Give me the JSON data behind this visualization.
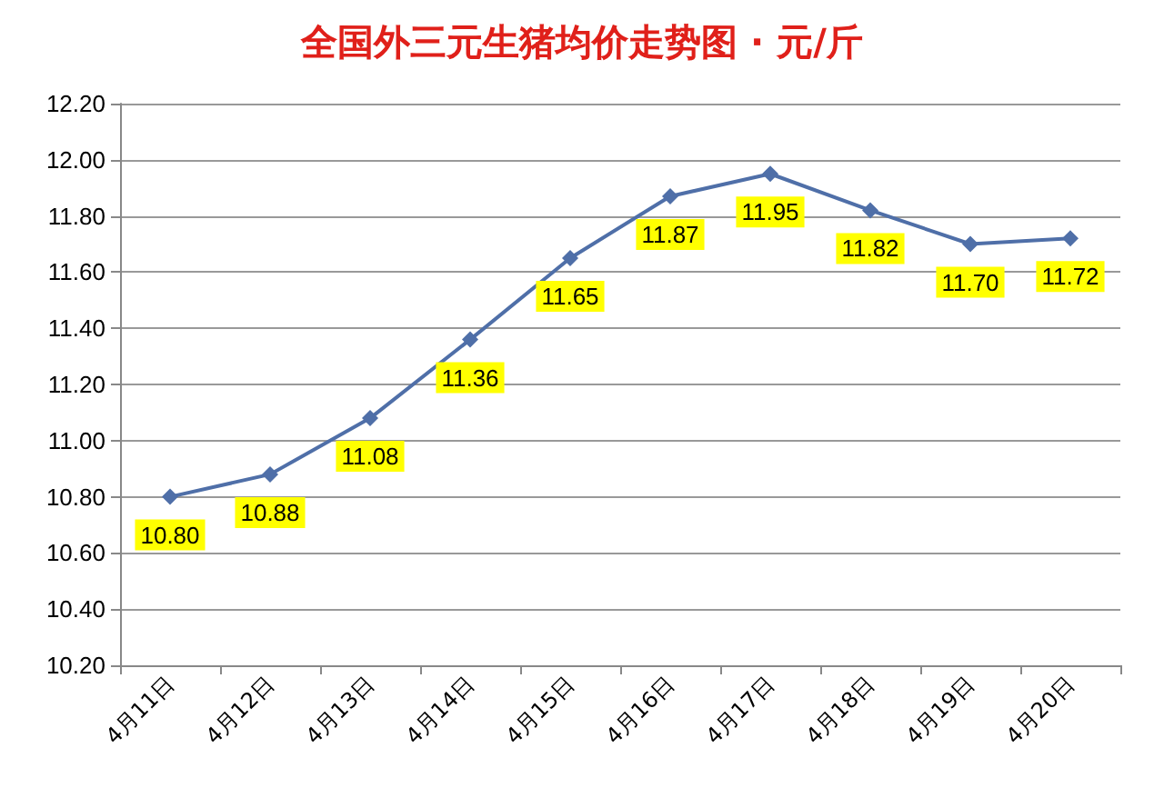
{
  "chart_data": {
    "type": "line",
    "title": "全国外三元生猪均价走势图 · 元/斤",
    "categories": [
      "4月11日",
      "4月12日",
      "4月13日",
      "4月14日",
      "4月15日",
      "4月16日",
      "4月17日",
      "4月18日",
      "4月19日",
      "4月20日"
    ],
    "series": [
      {
        "color": "#4f6fa8",
        "values": [
          10.8,
          10.88,
          11.08,
          11.36,
          11.65,
          11.87,
          11.95,
          11.82,
          11.7,
          11.72
        ],
        "value_labels": [
          "10.80",
          "10.88",
          "11.08",
          "11.36",
          "11.65",
          "11.87",
          "11.95",
          "11.82",
          "11.70",
          "11.72"
        ]
      }
    ],
    "ylim": [
      10.2,
      12.2
    ],
    "yticks": [
      {
        "value": 10.2,
        "label": "10.20"
      },
      {
        "value": 10.4,
        "label": "10.40"
      },
      {
        "value": 10.6,
        "label": "10.60"
      },
      {
        "value": 10.8,
        "label": "10.80"
      },
      {
        "value": 11,
        "label": "11.00"
      },
      {
        "value": 11.2,
        "label": "11.20"
      },
      {
        "value": 11.4,
        "label": "11.40"
      },
      {
        "value": 11.6,
        "label": "11.60"
      },
      {
        "value": 11.8,
        "label": "11.80"
      },
      {
        "value": 12,
        "label": "12.00"
      },
      {
        "value": 12.2,
        "label": "12.20"
      }
    ],
    "grid": "y",
    "marker": "diamond",
    "line_style": "solid"
  }
}
